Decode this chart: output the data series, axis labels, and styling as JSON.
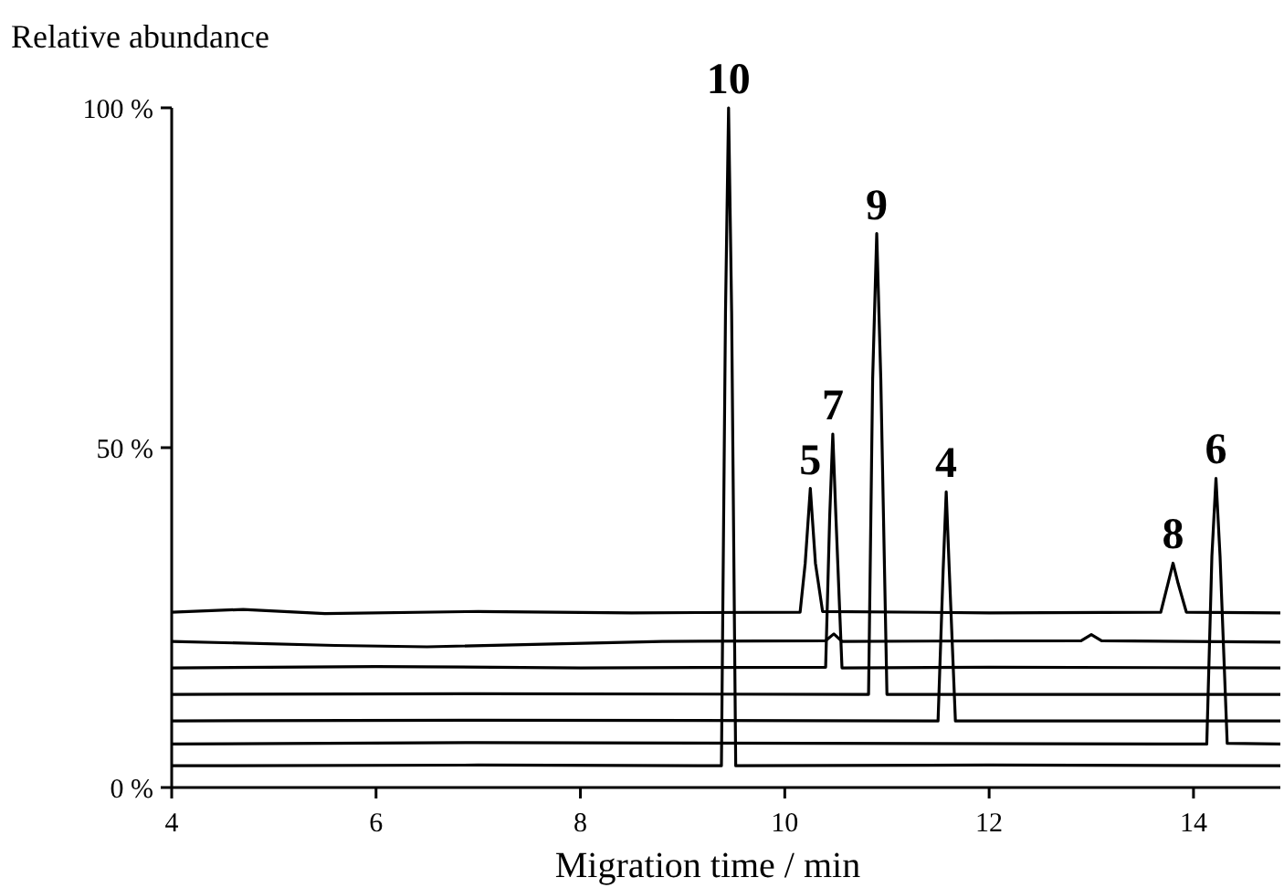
{
  "chart_data": {
    "type": "line",
    "ylabel": "Relative abundance",
    "xlabel": "Migration time / min",
    "xlim": [
      4,
      14.85
    ],
    "ylim": [
      0,
      100
    ],
    "xticks": [
      4,
      6,
      8,
      10,
      12,
      14
    ],
    "yticks": [
      {
        "value": 0,
        "label": "0 %"
      },
      {
        "value": 50,
        "label": "50 %"
      },
      {
        "value": 100,
        "label": "100 %"
      }
    ],
    "grid": false,
    "marker": "none",
    "line_style": "solid",
    "series": [
      {
        "color": "#000000",
        "x": [
          4,
          4.7,
          5.5,
          7,
          8.5,
          10.15,
          10.2,
          10.25,
          10.3,
          10.37,
          12,
          13.68,
          13.75,
          13.8,
          13.85,
          13.93,
          14.85
        ],
        "values": [
          25.8,
          26.2,
          25.6,
          25.9,
          25.7,
          25.8,
          33,
          44,
          33,
          25.9,
          25.7,
          25.8,
          30,
          33,
          30,
          25.8,
          25.7
        ]
      },
      {
        "color": "#000000",
        "x": [
          4,
          5.6,
          6.5,
          8.8,
          10.4,
          10.48,
          10.56,
          12.9,
          13,
          13.1,
          14.85
        ],
        "values": [
          21.5,
          20.9,
          20.7,
          21.5,
          21.6,
          22.6,
          21.5,
          21.6,
          22.5,
          21.6,
          21.4
        ]
      },
      {
        "color": "#000000",
        "x": [
          4,
          6,
          8,
          10.4,
          10.44,
          10.47,
          10.5,
          10.56,
          12,
          14.85
        ],
        "values": [
          17.6,
          17.8,
          17.6,
          17.7,
          40,
          52,
          40,
          17.6,
          17.7,
          17.6
        ]
      },
      {
        "color": "#000000",
        "x": [
          4,
          7,
          10.82,
          10.86,
          10.9,
          10.94,
          11,
          13,
          14.85
        ],
        "values": [
          13.7,
          13.8,
          13.7,
          60,
          81.5,
          60,
          13.7,
          13.7,
          13.7
        ]
      },
      {
        "color": "#000000",
        "x": [
          4,
          7,
          11.5,
          11.55,
          11.58,
          11.61,
          11.67,
          13,
          14.85
        ],
        "values": [
          9.8,
          9.9,
          9.8,
          32,
          43.5,
          32,
          9.8,
          9.8,
          9.8
        ]
      },
      {
        "color": "#000000",
        "x": [
          4,
          7,
          14.13,
          14.18,
          14.22,
          14.26,
          14.33,
          14.85
        ],
        "values": [
          6.4,
          6.6,
          6.4,
          34,
          45.5,
          34,
          6.5,
          6.4
        ]
      },
      {
        "color": "#000000",
        "x": [
          4,
          7,
          9.38,
          9.42,
          9.45,
          9.48,
          9.52,
          12,
          14.85
        ],
        "values": [
          3.2,
          3.3,
          3.2,
          70,
          100,
          70,
          3.2,
          3.3,
          3.2
        ]
      }
    ],
    "annotations": [
      {
        "text": "10",
        "x": 9.45,
        "y": 100
      },
      {
        "text": "5",
        "x": 10.25,
        "y": 44
      },
      {
        "text": "7",
        "x": 10.47,
        "y": 52
      },
      {
        "text": "9",
        "x": 10.9,
        "y": 81.5
      },
      {
        "text": "4",
        "x": 11.58,
        "y": 43.5
      },
      {
        "text": "8",
        "x": 13.8,
        "y": 33
      },
      {
        "text": "6",
        "x": 14.22,
        "y": 45.5
      }
    ]
  }
}
